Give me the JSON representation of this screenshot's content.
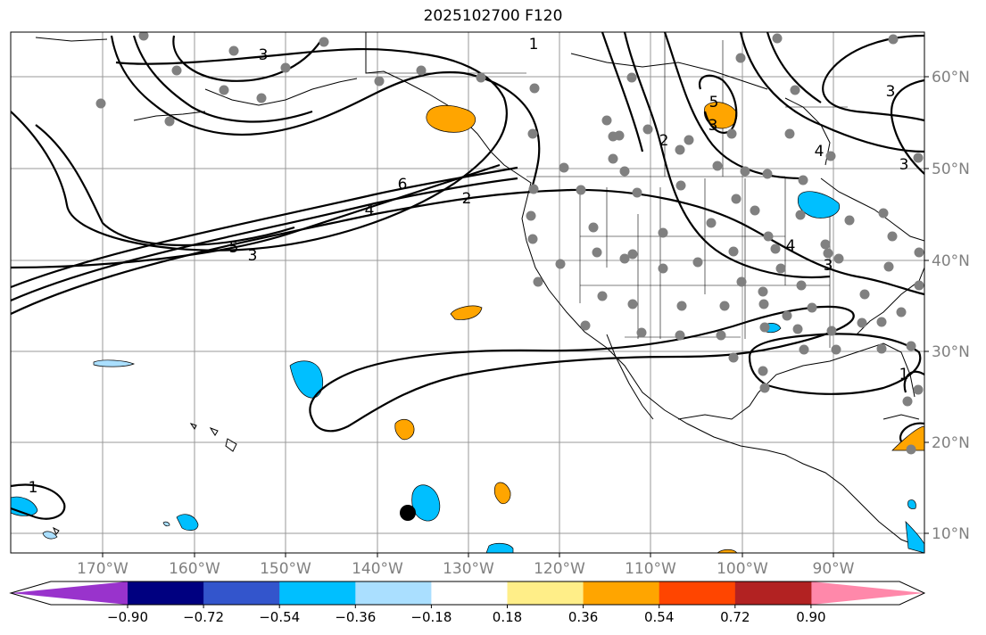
{
  "title": "2025102700 F120",
  "lon_labels": [
    "170°W",
    "160°W",
    "150°W",
    "140°W",
    "130°W",
    "120°W",
    "110°W",
    "100°W",
    "90°W"
  ],
  "lat_labels": [
    "60°N",
    "50°N",
    "40°N",
    "30°N",
    "20°N",
    "10°N"
  ],
  "contour_labels": [
    "3",
    "1",
    "2",
    "5",
    "3",
    "6",
    "4",
    "5",
    "3",
    "2",
    "4",
    "3",
    "4",
    "3",
    "3",
    "1",
    "1"
  ],
  "colorbar": {
    "tick_labels": [
      "−0.90",
      "−0.72",
      "−0.54",
      "−0.36",
      "−0.18",
      "0.18",
      "0.36",
      "0.54",
      "0.72",
      "0.90"
    ],
    "colors": [
      "#9933cc",
      "#000080",
      "#3355cc",
      "#00bfff",
      "#aadfff",
      "#ffffff",
      "#ffee88",
      "#ffa500",
      "#ff4500",
      "#b22222",
      "#ff88aa"
    ]
  },
  "colors": {
    "station_dot": "#808080",
    "positive_fill": "#ffa500",
    "negative_fill": "#00bfff",
    "marker": "#000000"
  }
}
